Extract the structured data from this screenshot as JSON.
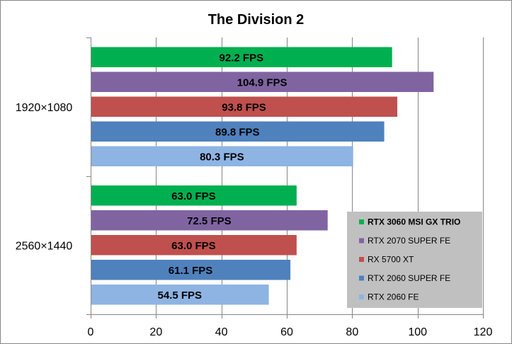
{
  "chart_data": {
    "type": "bar",
    "orientation": "horizontal",
    "title": "The Division 2",
    "categories": [
      "1920×1080",
      "2560×1440"
    ],
    "series": [
      {
        "name": "RTX 3060 MSI GX TRIO",
        "color": "#00b050",
        "values": [
          92.2,
          63.0
        ],
        "labels": [
          "92.2 FPS",
          "63.0 FPS"
        ]
      },
      {
        "name": "RTX 2070 SUPER FE",
        "color": "#8064a2",
        "values": [
          104.9,
          72.5
        ],
        "labels": [
          "104.9 FPS",
          "72.5 FPS"
        ]
      },
      {
        "name": "RX 5700 XT",
        "color": "#c0504d",
        "values": [
          93.8,
          63.0
        ],
        "labels": [
          "93.8 FPS",
          "63.0 FPS"
        ]
      },
      {
        "name": "RTX 2060 SUPER FE",
        "color": "#4f81bd",
        "values": [
          89.8,
          61.1
        ],
        "labels": [
          "89.8 FPS",
          "61.1 FPS"
        ]
      },
      {
        "name": "RTX 2060 FE",
        "color": "#8eb4e3",
        "values": [
          80.3,
          54.5
        ],
        "labels": [
          "80.3 FPS",
          "54.5 FPS"
        ]
      }
    ],
    "xlim": [
      0,
      120
    ],
    "xticks": [
      0,
      20,
      40,
      60,
      80,
      100,
      120
    ],
    "grid": "vertical",
    "legend_position": "bottom-right",
    "legend_bold_first": true
  }
}
